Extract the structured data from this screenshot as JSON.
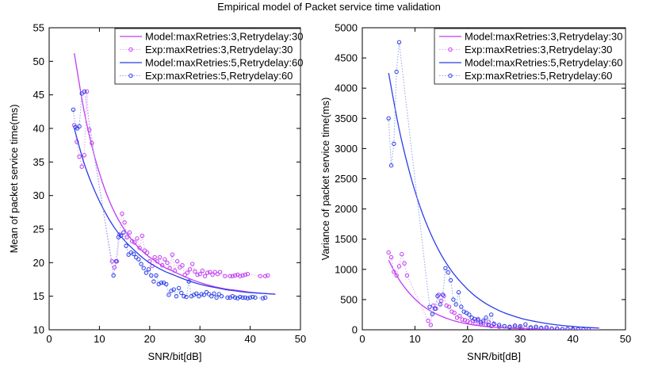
{
  "figure_title": "Empirical model of Packet service time validation",
  "colors": {
    "series_a": "#c03cf0",
    "series_b": "#2a3ee8",
    "exp_a_line": "#e0a2f5",
    "exp_b_line": "#8fa0f0"
  },
  "chart_data": [
    {
      "type": "line",
      "title": "",
      "xlabel": "SNR/bit[dB]",
      "ylabel": "Mean of packet service time(ms)",
      "xlim": [
        0,
        50
      ],
      "ylim": [
        10,
        55
      ],
      "xticks": [
        "0",
        "10",
        "20",
        "30",
        "40",
        "50"
      ],
      "yticks": [
        "10",
        "15",
        "20",
        "25",
        "30",
        "35",
        "40",
        "45",
        "50",
        "55"
      ],
      "legend_position": "top-right",
      "series": [
        {
          "name": "Model:maxRetries:3,Retrydelay:30",
          "style": "solid",
          "color": "#c03cf0",
          "x": [
            5,
            7,
            9,
            11,
            13,
            15,
            17,
            19,
            21,
            23,
            25,
            27,
            29,
            31,
            33,
            35,
            37,
            39,
            41,
            43,
            45
          ],
          "y": [
            51.2,
            42.4,
            35.9,
            31.1,
            27.5,
            24.9,
            22.9,
            21.4,
            20.3,
            19.3,
            18.6,
            17.9,
            17.3,
            16.8,
            16.4,
            16.1,
            15.9,
            15.7,
            15.5,
            15.4,
            15.3
          ]
        },
        {
          "name": "Exp:maxRetries:3,Retrydelay:30",
          "style": "dotted-markers",
          "color": "#c03cf0",
          "x": [
            5,
            5.5,
            6,
            6.5,
            7,
            7.5,
            8,
            8.5,
            12.5,
            13,
            13.5,
            14,
            14.5,
            15,
            15.5,
            16,
            16.5,
            17,
            17.5,
            18,
            18.5,
            19,
            19.5,
            20,
            20.5,
            21,
            21.5,
            22,
            22.5,
            23,
            23.5,
            24,
            24.5,
            25,
            25.5,
            26,
            26.5,
            27,
            27.5,
            28,
            28.5,
            29,
            29.5,
            30,
            30.5,
            31,
            31.5,
            32,
            32.5,
            33,
            33.5,
            34,
            35,
            36,
            36.5,
            37,
            37.5,
            38,
            38.5,
            39,
            39.5,
            42,
            43,
            43.5
          ],
          "y": [
            40.5,
            38,
            35.8,
            34.3,
            36,
            45.5,
            39.8,
            37.8,
            20.2,
            19.3,
            20.2,
            24.2,
            27.3,
            26.0,
            23.8,
            24.5,
            23.2,
            23.0,
            23.6,
            22.2,
            24.0,
            21.8,
            21.5,
            20.2,
            19.5,
            20.8,
            20.2,
            20.8,
            19.6,
            20.5,
            20.0,
            19.2,
            21.2,
            18.8,
            20.2,
            19.3,
            19.6,
            18.2,
            18.5,
            19.0,
            19.8,
            18.7,
            18.2,
            18.3,
            18.8,
            18.0,
            18.5,
            18.6,
            18.2,
            18.6,
            18.3,
            18.6,
            18.0,
            18.0,
            18.0,
            18.1,
            18.2,
            18.0,
            18.1,
            18.2,
            18.3,
            18.0,
            18.0,
            18.1
          ]
        },
        {
          "name": "Model:maxRetries:5,Retrydelay:60",
          "style": "solid",
          "color": "#2a3ee8",
          "x": [
            5,
            7,
            9,
            11,
            13,
            15,
            17,
            19,
            21,
            23,
            25,
            27,
            29,
            31,
            33,
            35,
            37,
            39,
            41,
            43,
            45
          ],
          "y": [
            40.0,
            34.7,
            30.8,
            27.7,
            25.2,
            23.3,
            21.8,
            20.5,
            19.5,
            18.7,
            18.1,
            17.5,
            17.0,
            16.6,
            16.3,
            16.0,
            15.8,
            15.6,
            15.5,
            15.4,
            15.3
          ]
        },
        {
          "name": "Exp:maxRetries:5,Retrydelay:60",
          "style": "dotted-markers",
          "color": "#2a3ee8",
          "x": [
            4.8,
            5.2,
            5.6,
            6,
            6.5,
            7,
            12.8,
            13.3,
            13.8,
            14.3,
            14.8,
            15.3,
            15.8,
            16.3,
            16.8,
            17.3,
            17.8,
            18.3,
            18.8,
            19.3,
            19.8,
            20.3,
            20.8,
            21.3,
            21.8,
            22.3,
            22.8,
            23.3,
            23.8,
            24.3,
            24.8,
            25.3,
            25.8,
            26.3,
            26.8,
            27.3,
            27.8,
            28.3,
            28.8,
            29.3,
            29.8,
            30.3,
            30.8,
            31.3,
            31.8,
            32.3,
            32.8,
            33.3,
            33.8,
            34.3,
            35.5,
            36,
            36.5,
            37,
            37.5,
            38,
            38.5,
            39,
            39.5,
            40,
            40.5,
            41,
            42.5,
            43
          ],
          "y": [
            42.8,
            40.2,
            40.0,
            40.3,
            45.2,
            45.5,
            18.1,
            20.2,
            23.8,
            24.0,
            24.5,
            22.5,
            21.2,
            21.5,
            21.3,
            20.8,
            20.5,
            19.8,
            19.2,
            18.5,
            19.0,
            18.1,
            17.2,
            18.1,
            16.8,
            17.0,
            17.0,
            16.8,
            15.2,
            15.8,
            16.0,
            15.0,
            16.2,
            15.5,
            15.0,
            14.9,
            17.2,
            15.0,
            15.2,
            15.4,
            15.0,
            15.3,
            15.2,
            15.6,
            15.3,
            15.0,
            15.4,
            14.8,
            15.3,
            15.0,
            14.8,
            14.8,
            15.0,
            14.8,
            14.7,
            14.9,
            14.8,
            14.8,
            14.7,
            14.8,
            14.9,
            14.8,
            14.7,
            14.8
          ]
        }
      ]
    },
    {
      "type": "line",
      "title": "",
      "xlabel": "SNR/bit[dB]",
      "ylabel": "Variance of packet service time(ms)",
      "xlim": [
        0,
        50
      ],
      "ylim": [
        0,
        5000
      ],
      "xticks": [
        "0",
        "10",
        "20",
        "30",
        "40",
        "50"
      ],
      "yticks": [
        "0",
        "500",
        "1000",
        "1500",
        "2000",
        "2500",
        "3000",
        "3500",
        "4000",
        "4500",
        "5000"
      ],
      "legend_position": "top-right",
      "series": [
        {
          "name": "Model:maxRetries:3,Retrydelay:30",
          "style": "solid",
          "color": "#c03cf0",
          "x": [
            5,
            7,
            9,
            11,
            13,
            15,
            17,
            19,
            21,
            23,
            25,
            27,
            29,
            31,
            33,
            35,
            37,
            39,
            41,
            43,
            45
          ],
          "y": [
            1150,
            830,
            600,
            430,
            310,
            225,
            160,
            115,
            83,
            60,
            43,
            31,
            22,
            16,
            12,
            8,
            6,
            4,
            3,
            2,
            1
          ]
        },
        {
          "name": "Exp:maxRetries:3,Retrydelay:30",
          "style": "dotted-markers",
          "color": "#c03cf0",
          "x": [
            5,
            5.5,
            6,
            6.5,
            7,
            7.5,
            8,
            8.5,
            12.5,
            13,
            13.5,
            14,
            14.5,
            15,
            15.5,
            16,
            16.5,
            17,
            17.5,
            18,
            18.5,
            19,
            19.5,
            20,
            20.5,
            21,
            21.5,
            22,
            22.5,
            23,
            23.5,
            24,
            24.5,
            25,
            26,
            27,
            28,
            29,
            30,
            31,
            32,
            33,
            34,
            35,
            36,
            37,
            38,
            39,
            40,
            41,
            42,
            43
          ],
          "y": [
            1280,
            1200,
            960,
            900,
            1050,
            1250,
            1100,
            900,
            150,
            80,
            400,
            350,
            580,
            480,
            560,
            400,
            380,
            300,
            280,
            200,
            230,
            170,
            160,
            140,
            120,
            150,
            100,
            180,
            90,
            120,
            80,
            130,
            60,
            90,
            50,
            60,
            40,
            50,
            40,
            30,
            30,
            25,
            20,
            20,
            15,
            15,
            10,
            10,
            8,
            8,
            6,
            5
          ]
        },
        {
          "name": "Model:maxRetries:5,Retrydelay:60",
          "style": "solid",
          "color": "#2a3ee8",
          "x": [
            5,
            7,
            9,
            11,
            13,
            15,
            17,
            19,
            21,
            23,
            25,
            27,
            29,
            31,
            33,
            35,
            37,
            39,
            41,
            43,
            45
          ],
          "y": [
            4250,
            3320,
            2600,
            2030,
            1590,
            1240,
            970,
            760,
            590,
            460,
            360,
            280,
            220,
            170,
            135,
            105,
            80,
            62,
            48,
            37,
            28
          ]
        },
        {
          "name": "Exp:maxRetries:5,Retrydelay:60",
          "style": "dotted-markers",
          "color": "#2a3ee8",
          "x": [
            5,
            5.5,
            6,
            6.5,
            7,
            12.8,
            13.3,
            13.8,
            14.3,
            14.8,
            15.3,
            15.8,
            16.3,
            16.8,
            17.3,
            17.8,
            18.3,
            18.8,
            19.3,
            19.8,
            20.3,
            20.8,
            21.3,
            22,
            22.5,
            23,
            23.5,
            24,
            24.5,
            25,
            26,
            27,
            28,
            29,
            30,
            31,
            32,
            33,
            34,
            35,
            36,
            37,
            38,
            39,
            40,
            41,
            42,
            43
          ],
          "y": [
            3500,
            2720,
            3080,
            4270,
            4760,
            380,
            260,
            350,
            560,
            420,
            580,
            1020,
            950,
            820,
            500,
            420,
            620,
            380,
            300,
            280,
            250,
            200,
            180,
            160,
            120,
            150,
            200,
            80,
            250,
            100,
            80,
            60,
            50,
            70,
            60,
            90,
            40,
            50,
            30,
            40,
            20,
            20,
            10,
            15,
            10,
            10,
            5,
            5
          ]
        }
      ]
    }
  ]
}
